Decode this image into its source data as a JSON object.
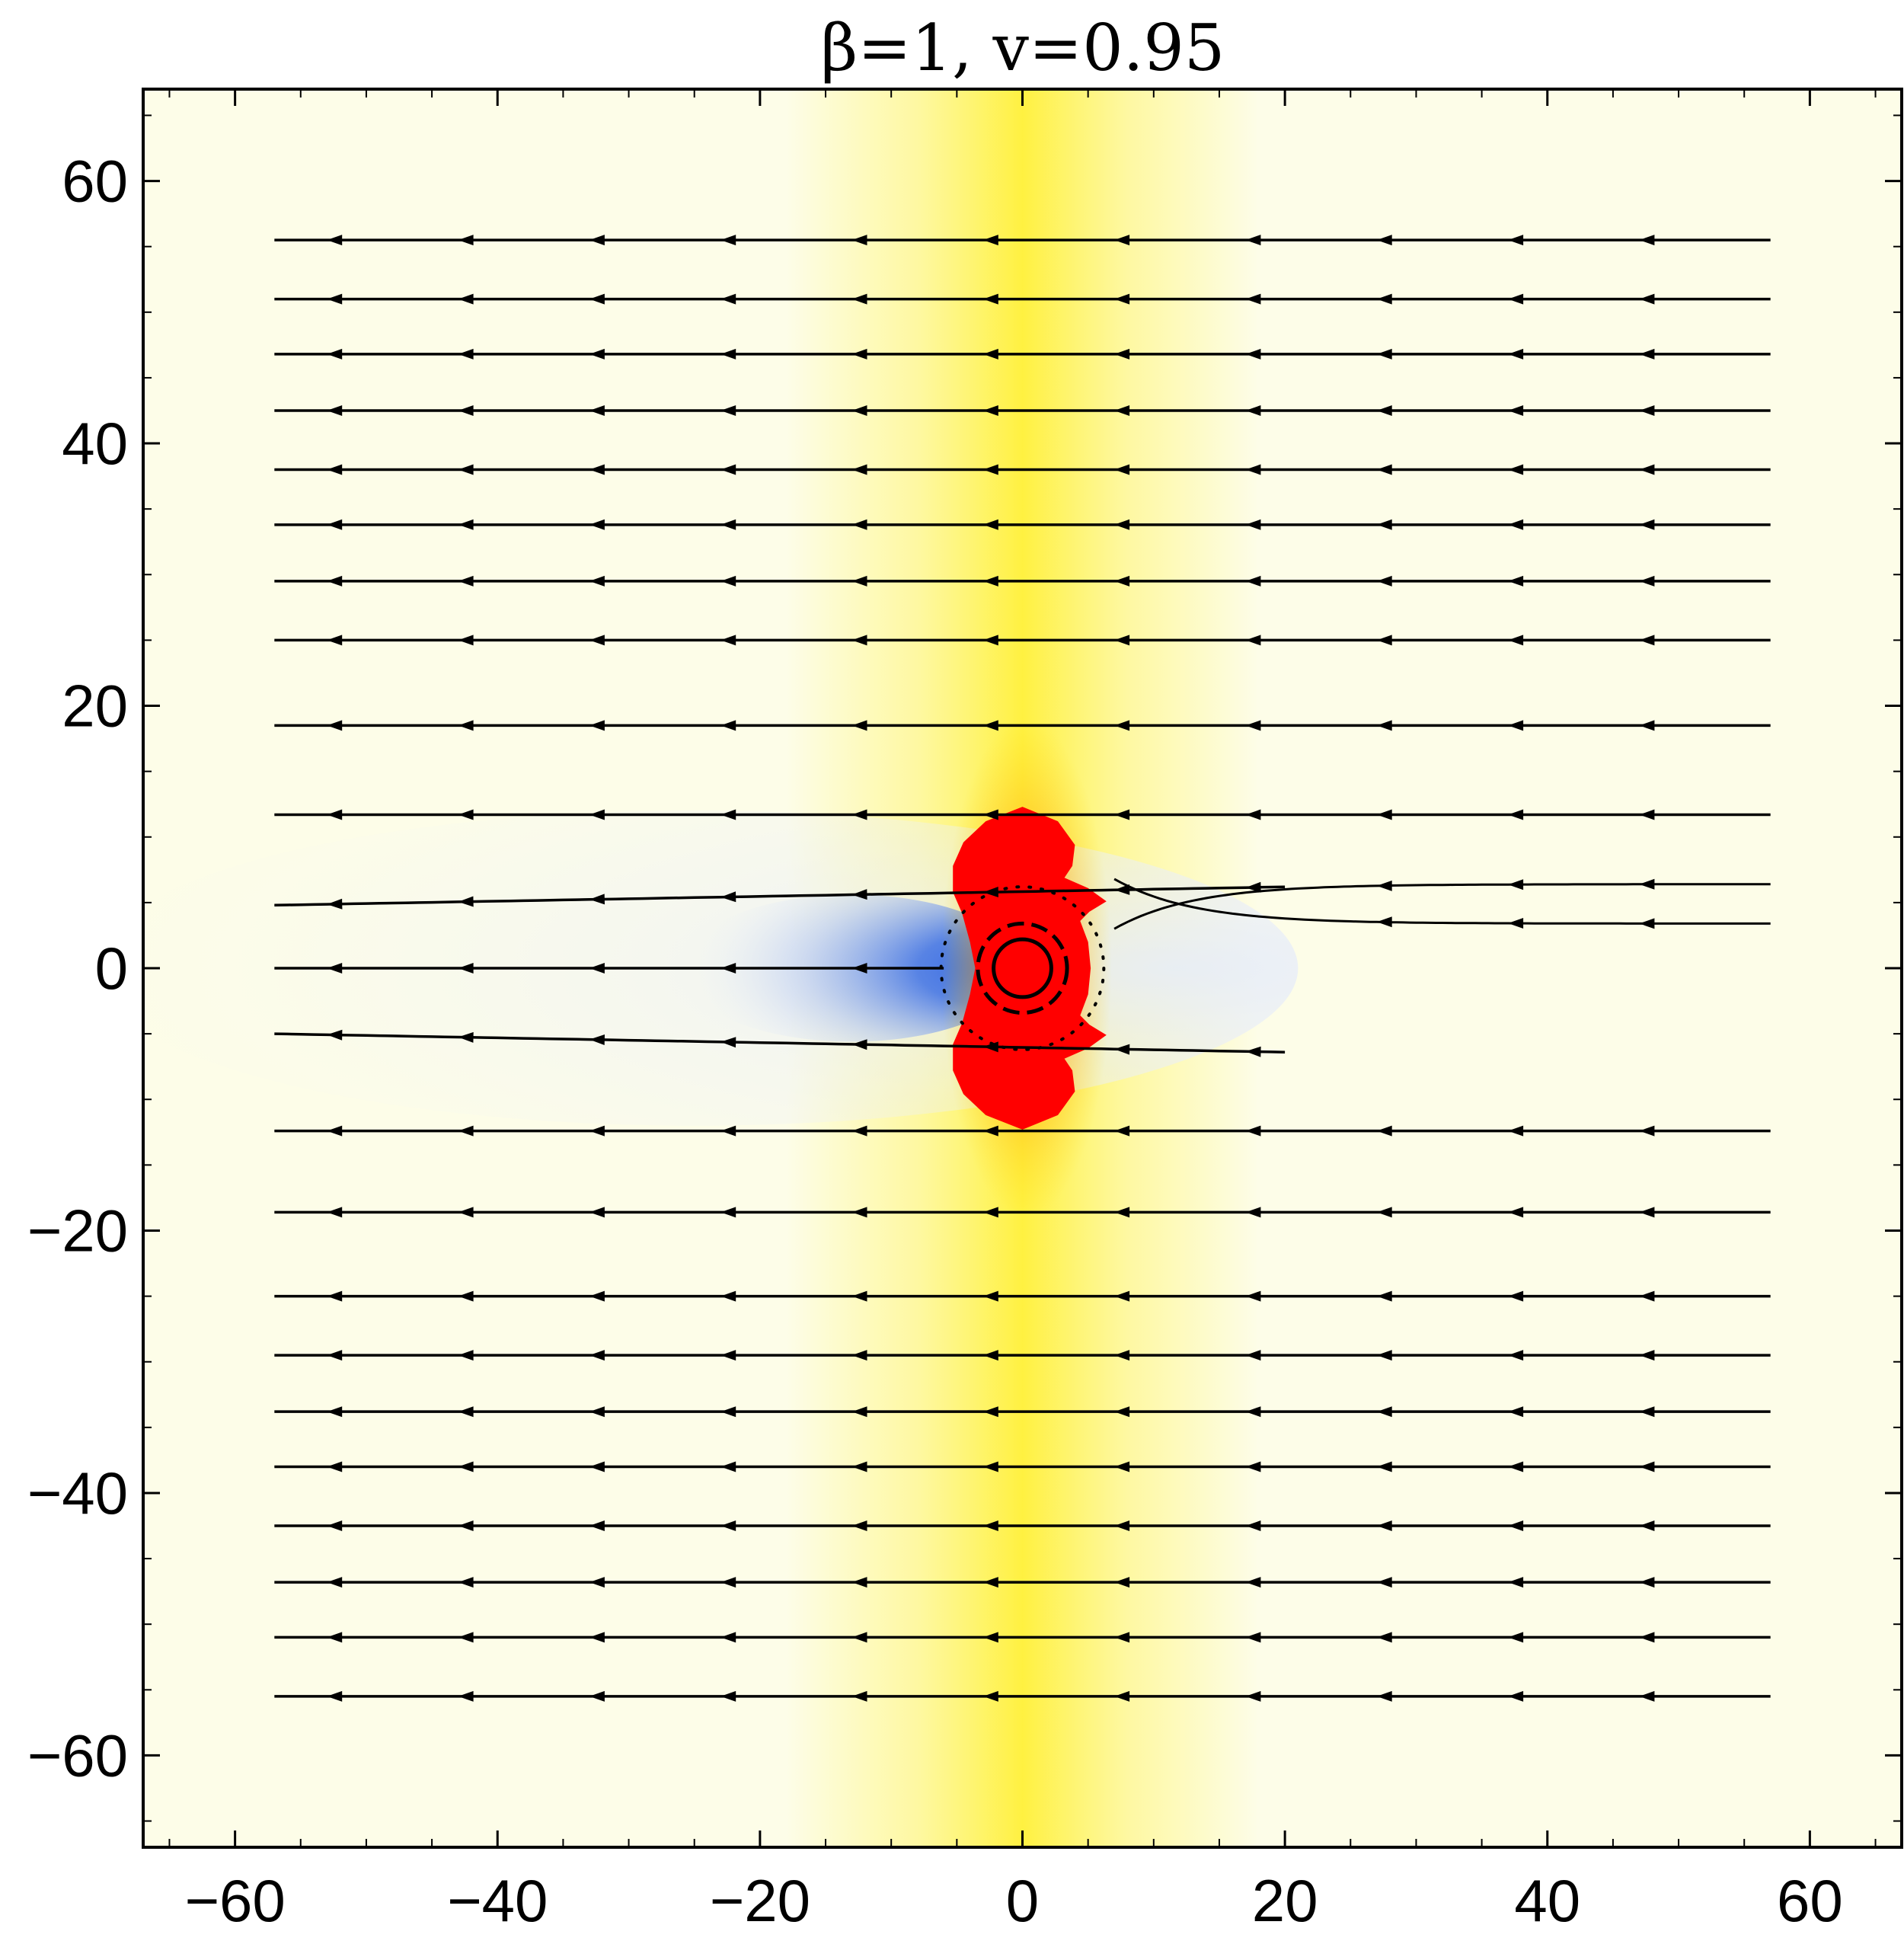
{
  "chart_data": {
    "type": "vector-field-density",
    "title": "β=1, v=0.95",
    "xlabel": "",
    "ylabel": "",
    "xlim": [
      -67,
      67
    ],
    "ylim": [
      -67,
      67
    ],
    "x_ticks": [
      -60,
      -40,
      -20,
      0,
      20,
      40,
      60
    ],
    "y_ticks": [
      60,
      40,
      20,
      0,
      -20,
      -40,
      -60
    ],
    "x_tick_labels": [
      "−60",
      "−40",
      "−20",
      "0",
      "20",
      "40",
      "60"
    ],
    "y_tick_labels": [
      "60",
      "40",
      "20",
      "0",
      "−20",
      "−40",
      "−60"
    ],
    "minor_tick_step": 5,
    "flow_direction": "negative-x",
    "stream_rows_y": [
      55.5,
      51,
      46.8,
      42.5,
      38,
      33.8,
      29.5,
      25,
      18.5,
      11.7,
      4.8,
      0,
      -5,
      -12.4,
      -18.6,
      -25,
      -29.5,
      -33.8,
      -38,
      -42.5,
      -46.8,
      -51,
      -55.5
    ],
    "arrow_spacing_x": 10,
    "stream_x_range": [
      -57,
      57
    ],
    "central_circle_radius": 2.2,
    "inner_dashed_radius": 3.4,
    "outer_dotted_radius": 6.2,
    "colors": {
      "background": "#fdfde8",
      "yellow_band": "#fff24a",
      "red_core": "#ff0000",
      "blue_wake": "#2a5fe0",
      "pale_wake": "#eef2fb",
      "lines": "#000000"
    }
  }
}
